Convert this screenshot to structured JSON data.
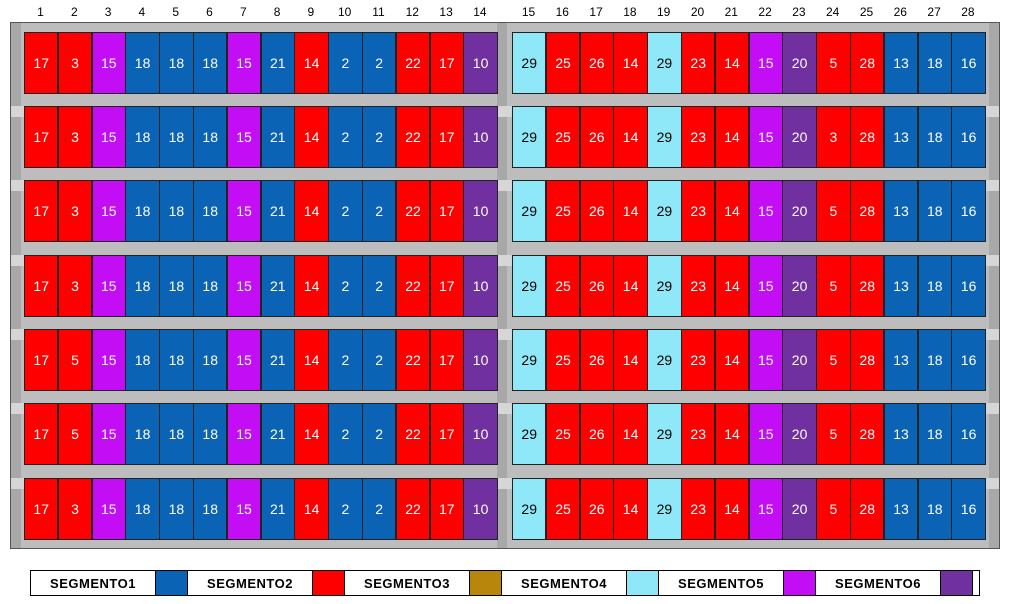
{
  "colors": {
    "SEGMENTO1": "#0a63b4",
    "SEGMENTO2": "#ff0000",
    "SEGMENTO3": "#b8860b",
    "SEGMENTO4": "#8fe8f7",
    "SEGMENTO5": "#c20df5",
    "SEGMENTO6": "#7030a0"
  },
  "columns": [
    "1",
    "2",
    "3",
    "4",
    "5",
    "6",
    "7",
    "8",
    "9",
    "10",
    "11",
    "12",
    "13",
    "14",
    "15",
    "16",
    "17",
    "18",
    "19",
    "20",
    "21",
    "22",
    "23",
    "24",
    "25",
    "26",
    "27",
    "28"
  ],
  "legend": [
    {
      "label": "SEGMENTO1",
      "color": "#0a63b4"
    },
    {
      "label": "SEGMENTO2",
      "color": "#ff0000"
    },
    {
      "label": "SEGMENTO3",
      "color": "#b8860b"
    },
    {
      "label": "SEGMENTO4",
      "color": "#8fe8f7"
    },
    {
      "label": "SEGMENTO5",
      "color": "#c20df5"
    },
    {
      "label": "SEGMENTO6",
      "color": "#7030a0"
    }
  ],
  "rows": [
    {
      "values": [
        "17",
        "3",
        "15",
        "18",
        "18",
        "18",
        "15",
        "21",
        "14",
        "2",
        "2",
        "22",
        "17",
        "10",
        "29",
        "25",
        "26",
        "14",
        "29",
        "23",
        "14",
        "15",
        "20",
        "5",
        "28",
        "13",
        "18",
        "16"
      ]
    },
    {
      "values": [
        "17",
        "3",
        "15",
        "18",
        "18",
        "18",
        "15",
        "21",
        "14",
        "2",
        "2",
        "22",
        "17",
        "10",
        "29",
        "25",
        "26",
        "14",
        "29",
        "23",
        "14",
        "15",
        "20",
        "3",
        "28",
        "13",
        "18",
        "16"
      ]
    },
    {
      "values": [
        "17",
        "3",
        "15",
        "18",
        "18",
        "18",
        "15",
        "21",
        "14",
        "2",
        "2",
        "22",
        "17",
        "10",
        "29",
        "25",
        "26",
        "14",
        "29",
        "23",
        "14",
        "15",
        "20",
        "5",
        "28",
        "13",
        "18",
        "16"
      ]
    },
    {
      "values": [
        "17",
        "3",
        "15",
        "18",
        "18",
        "18",
        "15",
        "21",
        "14",
        "2",
        "2",
        "22",
        "17",
        "10",
        "29",
        "25",
        "26",
        "14",
        "29",
        "23",
        "14",
        "15",
        "20",
        "5",
        "28",
        "13",
        "18",
        "16"
      ]
    },
    {
      "values": [
        "17",
        "5",
        "15",
        "18",
        "18",
        "18",
        "15",
        "21",
        "14",
        "2",
        "2",
        "22",
        "17",
        "10",
        "29",
        "25",
        "26",
        "14",
        "29",
        "23",
        "14",
        "15",
        "20",
        "5",
        "28",
        "13",
        "18",
        "16"
      ]
    },
    {
      "values": [
        "17",
        "5",
        "15",
        "18",
        "18",
        "18",
        "15",
        "21",
        "14",
        "2",
        "2",
        "22",
        "17",
        "10",
        "29",
        "25",
        "26",
        "14",
        "29",
        "23",
        "14",
        "15",
        "20",
        "5",
        "28",
        "13",
        "18",
        "16"
      ]
    },
    {
      "values": [
        "17",
        "3",
        "15",
        "18",
        "18",
        "18",
        "15",
        "21",
        "14",
        "2",
        "2",
        "22",
        "17",
        "10",
        "29",
        "25",
        "26",
        "14",
        "29",
        "23",
        "14",
        "15",
        "20",
        "5",
        "28",
        "13",
        "18",
        "16"
      ]
    }
  ],
  "column_segments": [
    "SEGMENTO2",
    "SEGMENTO2",
    "SEGMENTO5",
    "SEGMENTO1",
    "SEGMENTO1",
    "SEGMENTO1",
    "SEGMENTO5",
    "SEGMENTO1",
    "SEGMENTO2",
    "SEGMENTO1",
    "SEGMENTO1",
    "SEGMENTO2",
    "SEGMENTO2",
    "SEGMENTO6",
    "SEGMENTO4",
    "SEGMENTO2",
    "SEGMENTO2",
    "SEGMENTO2",
    "SEGMENTO4",
    "SEGMENTO2",
    "SEGMENTO2",
    "SEGMENTO5",
    "SEGMENTO6",
    "SEGMENTO2",
    "SEGMENTO2",
    "SEGMENTO1",
    "SEGMENTO1",
    "SEGMENTO1"
  ]
}
